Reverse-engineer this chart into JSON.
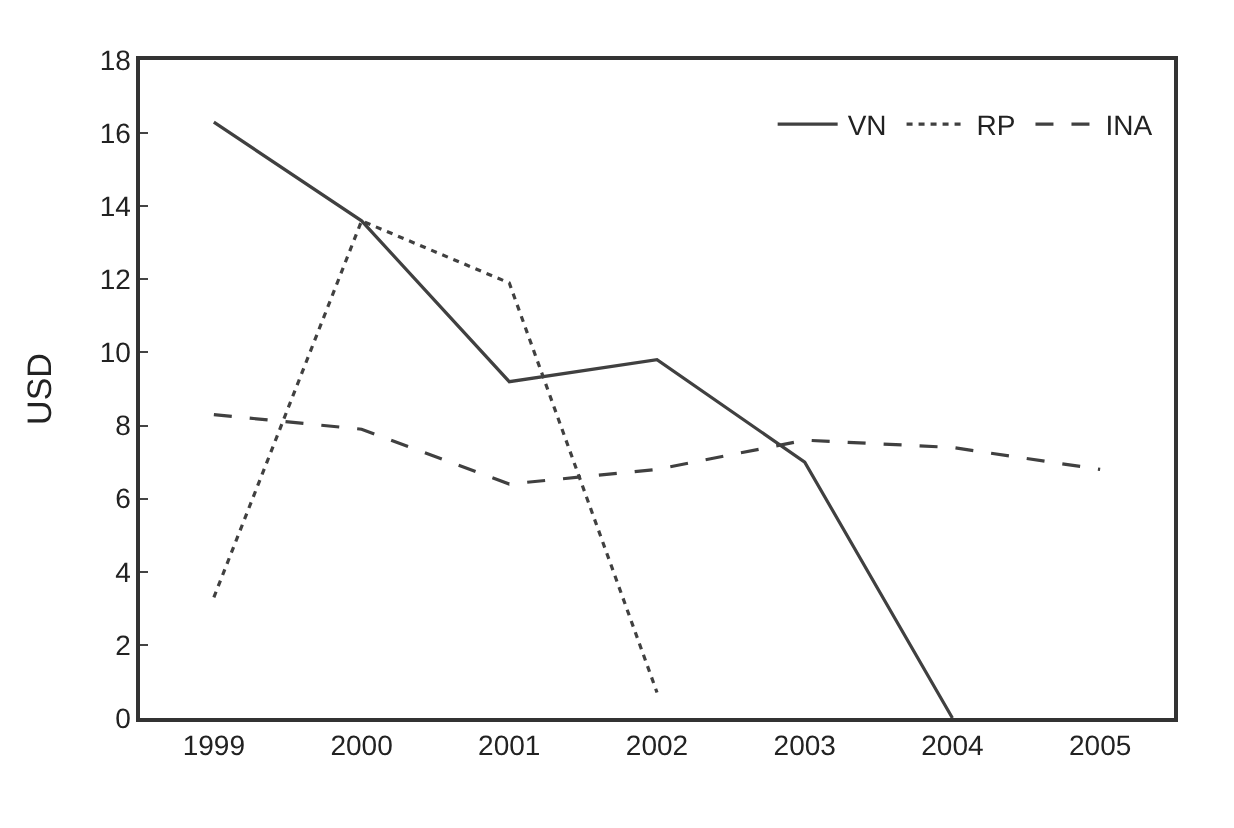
{
  "chart_data": {
    "type": "line",
    "ylabel": "USD",
    "categories": [
      "1999",
      "2000",
      "2001",
      "2002",
      "2003",
      "2004",
      "2005"
    ],
    "series": [
      {
        "name": "VN",
        "color": "#404040",
        "line_style": "solid",
        "values": [
          16.3,
          13.6,
          9.2,
          9.8,
          7.0,
          0,
          null
        ]
      },
      {
        "name": "RP",
        "color": "#404040",
        "line_style": "dotted",
        "values": [
          3.3,
          13.6,
          11.9,
          0.7,
          null,
          null,
          null
        ]
      },
      {
        "name": "INA",
        "color": "#404040",
        "line_style": "dashed",
        "values": [
          8.3,
          7.9,
          6.4,
          6.8,
          7.6,
          7.4,
          6.8
        ]
      }
    ],
    "ylim": [
      0,
      18
    ],
    "yticks": [
      0,
      2,
      4,
      6,
      8,
      10,
      12,
      14,
      16,
      18
    ],
    "grid": false,
    "legend": "top right",
    "marker": "none"
  }
}
